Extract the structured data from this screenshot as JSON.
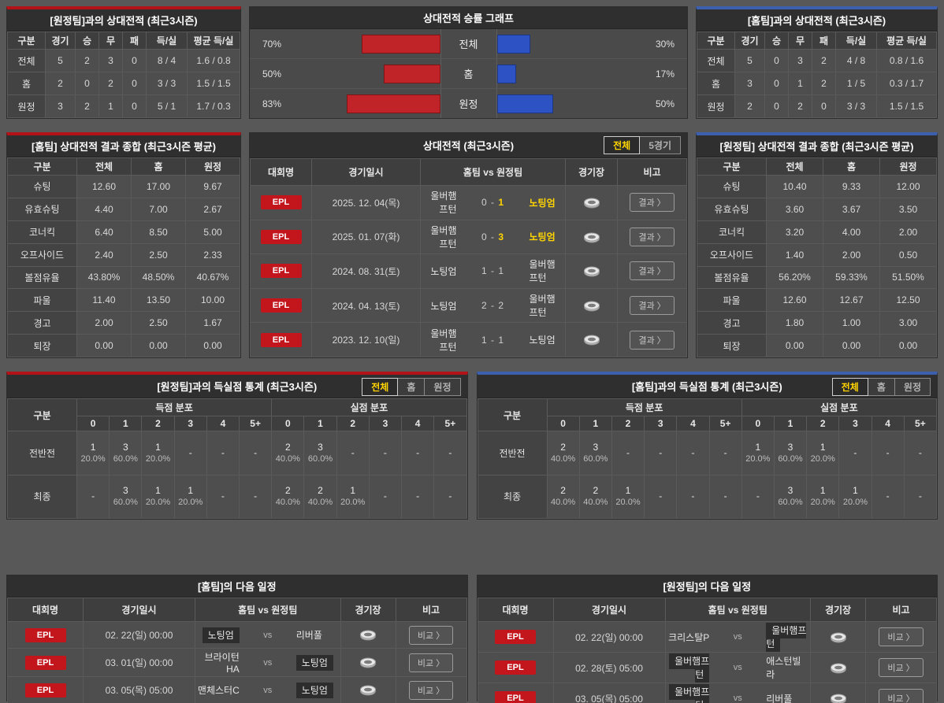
{
  "colors": {
    "accent_red": "#b11318",
    "accent_blue": "#3c5fae",
    "highlight_yellow": "#ffd400",
    "epl_badge_red": "#c2161c"
  },
  "chart_data": {
    "type": "bar",
    "title": "상대전적 승률 그래프",
    "categories": [
      "전체",
      "홈",
      "원정"
    ],
    "series": [
      {
        "name": "red-left",
        "values": [
          70,
          50,
          83
        ]
      },
      {
        "name": "blue-right",
        "values": [
          30,
          17,
          50
        ]
      }
    ],
    "unit": "%",
    "xlim": [
      0,
      100
    ],
    "legend_position": "none"
  },
  "panels": {
    "h2h_vs_away": {
      "title": "[원정팀]과의 상대전적 (최근3시즌)",
      "headers": [
        "구분",
        "경기",
        "승",
        "무",
        "패",
        "득/실",
        "평균 득/실"
      ],
      "rows": [
        {
          "label": "전체",
          "cells": [
            "5",
            "2",
            "3",
            "0",
            "8 / 4",
            "1.6 / 0.8"
          ]
        },
        {
          "label": "홈",
          "cells": [
            "2",
            "0",
            "2",
            "0",
            "3 / 3",
            "1.5 / 1.5"
          ]
        },
        {
          "label": "원정",
          "cells": [
            "3",
            "2",
            "1",
            "0",
            "5 / 1",
            "1.7 / 0.3"
          ]
        }
      ]
    },
    "winrate_chart": {
      "title": "상대전적 승률 그래프",
      "rows": [
        {
          "label": "전체",
          "left_label": "70%",
          "left_val": 70,
          "right_label": "30%",
          "right_val": 30
        },
        {
          "label": "홈",
          "left_label": "50%",
          "left_val": 50,
          "right_label": "17%",
          "right_val": 17
        },
        {
          "label": "원정",
          "left_label": "83%",
          "left_val": 83,
          "right_label": "50%",
          "right_val": 50
        }
      ]
    },
    "h2h_vs_home": {
      "title": "[홈팀]과의 상대전적 (최근3시즌)",
      "headers": [
        "구분",
        "경기",
        "승",
        "무",
        "패",
        "득/실",
        "평균 득/실"
      ],
      "rows": [
        {
          "label": "전체",
          "cells": [
            "5",
            "0",
            "3",
            "2",
            "4 / 8",
            "0.8 / 1.6"
          ]
        },
        {
          "label": "홈",
          "cells": [
            "3",
            "0",
            "1",
            "2",
            "1 / 5",
            "0.3 / 1.7"
          ]
        },
        {
          "label": "원정",
          "cells": [
            "2",
            "0",
            "2",
            "0",
            "3 / 3",
            "1.5 / 1.5"
          ]
        }
      ]
    },
    "home_summary": {
      "title": "[홈팀] 상대전적 결과 종합 (최근3시즌 평균)",
      "headers": [
        "구분",
        "전체",
        "홈",
        "원정"
      ],
      "rows": [
        {
          "label": "슈팅",
          "cells": [
            "12.60",
            "17.00",
            "9.67"
          ]
        },
        {
          "label": "유효슈팅",
          "cells": [
            "4.40",
            "7.00",
            "2.67"
          ]
        },
        {
          "label": "코너킥",
          "cells": [
            "6.40",
            "8.50",
            "5.00"
          ]
        },
        {
          "label": "오프사이드",
          "cells": [
            "2.40",
            "2.50",
            "2.33"
          ]
        },
        {
          "label": "볼점유율",
          "cells": [
            "43.80%",
            "48.50%",
            "40.67%"
          ]
        },
        {
          "label": "파울",
          "cells": [
            "11.40",
            "13.50",
            "10.00"
          ]
        },
        {
          "label": "경고",
          "cells": [
            "2.00",
            "2.50",
            "1.67"
          ]
        },
        {
          "label": "퇴장",
          "cells": [
            "0.00",
            "0.00",
            "0.00"
          ]
        }
      ]
    },
    "away_summary": {
      "title": "[원정팀] 상대전적 결과 종합 (최근3시즌 평균)",
      "headers": [
        "구분",
        "전체",
        "홈",
        "원정"
      ],
      "rows": [
        {
          "label": "슈팅",
          "cells": [
            "10.40",
            "9.33",
            "12.00"
          ]
        },
        {
          "label": "유효슈팅",
          "cells": [
            "3.60",
            "3.67",
            "3.50"
          ]
        },
        {
          "label": "코너킥",
          "cells": [
            "3.20",
            "4.00",
            "2.00"
          ]
        },
        {
          "label": "오프사이드",
          "cells": [
            "1.40",
            "2.00",
            "0.50"
          ]
        },
        {
          "label": "볼점유율",
          "cells": [
            "56.20%",
            "59.33%",
            "51.50%"
          ]
        },
        {
          "label": "파울",
          "cells": [
            "12.60",
            "12.67",
            "12.50"
          ]
        },
        {
          "label": "경고",
          "cells": [
            "1.80",
            "1.00",
            "3.00"
          ]
        },
        {
          "label": "퇴장",
          "cells": [
            "0.00",
            "0.00",
            "0.00"
          ]
        }
      ]
    },
    "h2h_matches": {
      "title": "상대전적 (최근3시즌)",
      "tabs": [
        {
          "label": "전체"
        },
        {
          "label": "5경기"
        }
      ],
      "headers": [
        "대회명",
        "경기일시",
        "홈팀  vs  원정팀",
        "경기장",
        "비고"
      ],
      "score_sep": "-",
      "button_label": "결과 〉",
      "rows": [
        {
          "league": "EPL",
          "date": "2025. 12. 04(목)",
          "home": "울버햄프턴",
          "hg": "0",
          "ag": "1",
          "away": "노팅엄",
          "ag_hl": true,
          "away_hl": true
        },
        {
          "league": "EPL",
          "date": "2025. 01. 07(화)",
          "home": "울버햄프턴",
          "hg": "0",
          "ag": "3",
          "away": "노팅엄",
          "ag_hl": true,
          "away_hl": true
        },
        {
          "league": "EPL",
          "date": "2024. 08. 31(토)",
          "home": "노팅엄",
          "hg": "1",
          "ag": "1",
          "away": "울버햄프턴"
        },
        {
          "league": "EPL",
          "date": "2024. 04. 13(토)",
          "home": "노팅엄",
          "hg": "2",
          "ag": "2",
          "away": "울버햄프턴"
        },
        {
          "league": "EPL",
          "date": "2023. 12. 10(일)",
          "home": "울버햄프턴",
          "hg": "1",
          "ag": "1",
          "away": "노팅엄"
        }
      ]
    },
    "goal_stats_left": {
      "title": "[원정팀]과의 득실점 통계 (최근3시즌)",
      "tabs": [
        {
          "label": "전체"
        },
        {
          "label": "홈"
        },
        {
          "label": "원정"
        }
      ],
      "col_label": "구분",
      "group_headers": [
        "득점 분포",
        "실점 분포"
      ],
      "cols": [
        "0",
        "1",
        "2",
        "3",
        "4",
        "5+"
      ],
      "rows": [
        {
          "label": "전반전",
          "cells": [
            {
              "n": "1",
              "p": "20.0%"
            },
            {
              "n": "3",
              "p": "60.0%"
            },
            {
              "n": "1",
              "p": "20.0%"
            },
            {
              "n": "-",
              "p": ""
            },
            {
              "n": "-",
              "p": ""
            },
            {
              "n": "-",
              "p": ""
            },
            {
              "n": "2",
              "p": "40.0%"
            },
            {
              "n": "3",
              "p": "60.0%"
            },
            {
              "n": "-",
              "p": ""
            },
            {
              "n": "-",
              "p": ""
            },
            {
              "n": "-",
              "p": ""
            },
            {
              "n": "-",
              "p": ""
            }
          ]
        },
        {
          "label": "최종",
          "cells": [
            {
              "n": "-",
              "p": ""
            },
            {
              "n": "3",
              "p": "60.0%"
            },
            {
              "n": "1",
              "p": "20.0%"
            },
            {
              "n": "1",
              "p": "20.0%"
            },
            {
              "n": "-",
              "p": ""
            },
            {
              "n": "-",
              "p": ""
            },
            {
              "n": "2",
              "p": "40.0%"
            },
            {
              "n": "2",
              "p": "40.0%"
            },
            {
              "n": "1",
              "p": "20.0%"
            },
            {
              "n": "-",
              "p": ""
            },
            {
              "n": "-",
              "p": ""
            },
            {
              "n": "-",
              "p": ""
            }
          ]
        }
      ]
    },
    "goal_stats_right": {
      "title": "[홈팀]과의 득실점 통계 (최근3시즌)",
      "tabs": [
        {
          "label": "전체"
        },
        {
          "label": "홈"
        },
        {
          "label": "원정"
        }
      ],
      "col_label": "구분",
      "group_headers": [
        "득점 분포",
        "실점 분포"
      ],
      "cols": [
        "0",
        "1",
        "2",
        "3",
        "4",
        "5+"
      ],
      "rows": [
        {
          "label": "전반전",
          "cells": [
            {
              "n": "2",
              "p": "40.0%"
            },
            {
              "n": "3",
              "p": "60.0%"
            },
            {
              "n": "-",
              "p": ""
            },
            {
              "n": "-",
              "p": ""
            },
            {
              "n": "-",
              "p": ""
            },
            {
              "n": "-",
              "p": ""
            },
            {
              "n": "1",
              "p": "20.0%"
            },
            {
              "n": "3",
              "p": "60.0%"
            },
            {
              "n": "1",
              "p": "20.0%"
            },
            {
              "n": "-",
              "p": ""
            },
            {
              "n": "-",
              "p": ""
            },
            {
              "n": "-",
              "p": ""
            }
          ]
        },
        {
          "label": "최종",
          "cells": [
            {
              "n": "2",
              "p": "40.0%"
            },
            {
              "n": "2",
              "p": "40.0%"
            },
            {
              "n": "1",
              "p": "20.0%"
            },
            {
              "n": "-",
              "p": ""
            },
            {
              "n": "-",
              "p": ""
            },
            {
              "n": "-",
              "p": ""
            },
            {
              "n": "-",
              "p": ""
            },
            {
              "n": "3",
              "p": "60.0%"
            },
            {
              "n": "1",
              "p": "20.0%"
            },
            {
              "n": "1",
              "p": "20.0%"
            },
            {
              "n": "-",
              "p": ""
            },
            {
              "n": "-",
              "p": ""
            }
          ]
        }
      ]
    },
    "schedule_home": {
      "title": "[홈팀]의 다음 일정",
      "headers": [
        "대회명",
        "경기일시",
        "홈팀  vs  원정팀",
        "경기장",
        "비고"
      ],
      "vs_label": "vs",
      "button_label": "비교 〉",
      "rows": [
        {
          "league": "EPL",
          "date": "02. 22(일) 00:00",
          "home": "노팅엄",
          "away": "리버풀",
          "home_hl": true
        },
        {
          "league": "EPL",
          "date": "03. 01(일) 00:00",
          "home": "브라이턴HA",
          "away": "노팅엄",
          "away_hl": true
        },
        {
          "league": "EPL",
          "date": "03. 05(목) 05:00",
          "home": "맨체스터C",
          "away": "노팅엄",
          "away_hl": true
        }
      ]
    },
    "schedule_away": {
      "title": "[원정팀]의 다음 일정",
      "headers": [
        "대회명",
        "경기일시",
        "홈팀  vs  원정팀",
        "경기장",
        "비고"
      ],
      "vs_label": "vs",
      "button_label": "비교 〉",
      "rows": [
        {
          "league": "EPL",
          "date": "02. 22(일) 00:00",
          "home": "크리스탈P",
          "away": "울버햄프턴",
          "away_hl": true
        },
        {
          "league": "EPL",
          "date": "02. 28(토) 05:00",
          "home": "울버햄프턴",
          "away": "애스턴빌라",
          "home_hl": true
        },
        {
          "league": "EPL",
          "date": "03. 05(목) 05:00",
          "home": "울버햄프턴",
          "away": "리버풀",
          "home_hl": true
        }
      ]
    }
  }
}
